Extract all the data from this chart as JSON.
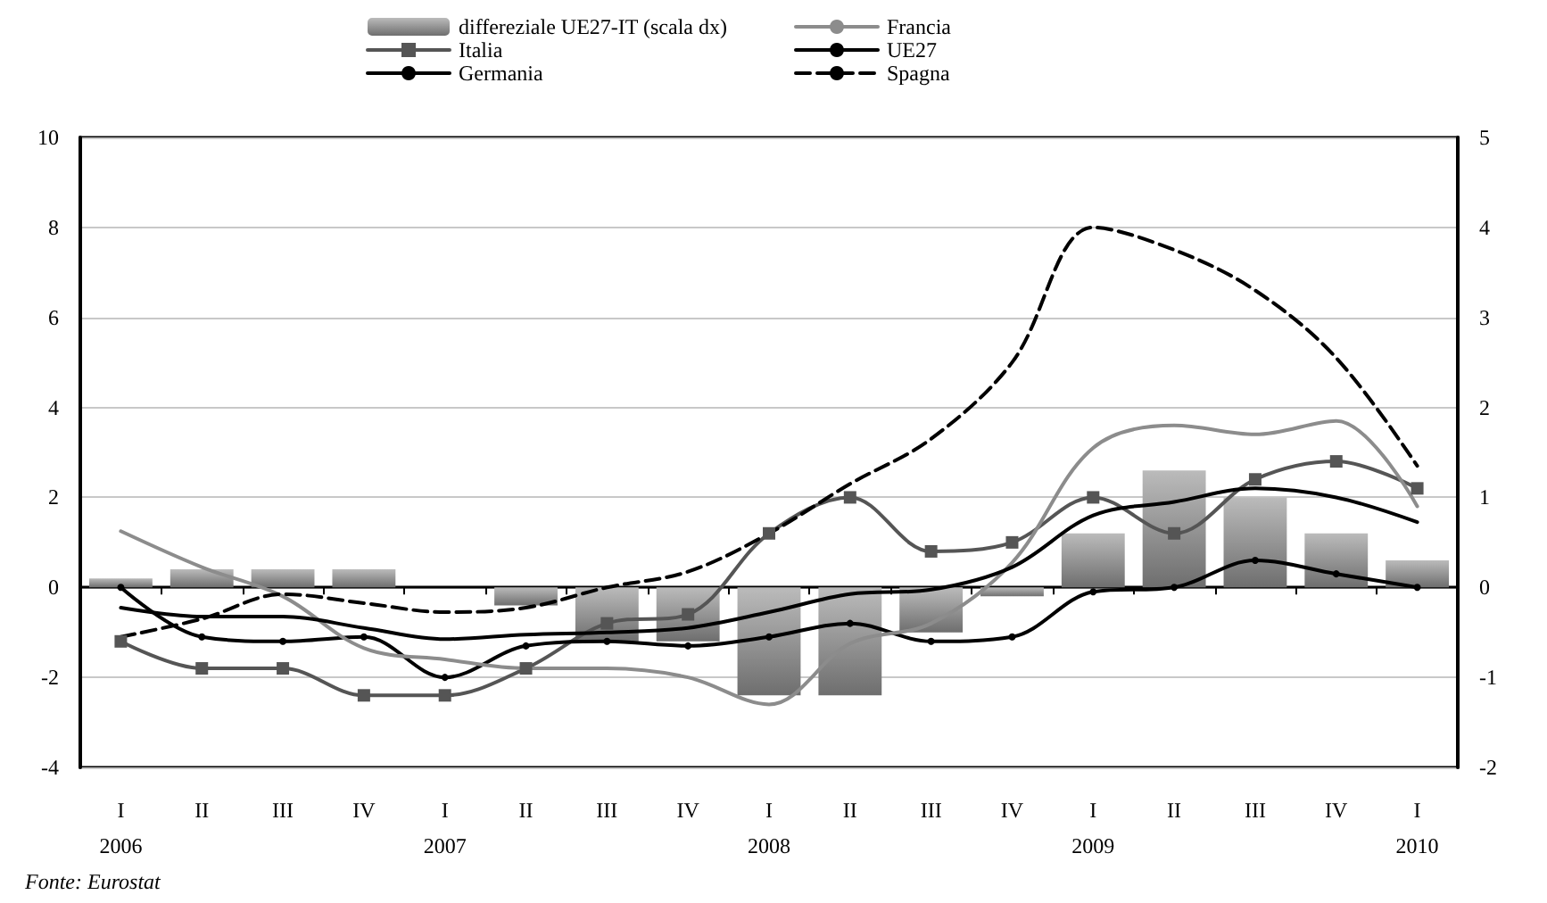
{
  "chart_data": {
    "type": "line",
    "categories": [
      "I\n2006",
      "II",
      "III",
      "IV",
      "I\n2007",
      "II",
      "III",
      "IV",
      "I\n2008",
      "II",
      "III",
      "IV",
      "I\n2009",
      "II",
      "III",
      "IV",
      "I\n2010"
    ],
    "series": [
      {
        "name": "differeziale UE27-IT (scala dx)",
        "type": "bar",
        "axis": "y2",
        "color": "#6e6e6e",
        "values": [
          0.1,
          0.2,
          0.2,
          0.2,
          0,
          -0.2,
          -0.6,
          -0.6,
          -1.2,
          -1.2,
          -0.5,
          -0.1,
          0.6,
          1.3,
          1.0,
          0.6,
          0.3
        ]
      },
      {
        "name": "Italia",
        "color": "#555555",
        "marker": "square",
        "line_style": "solid",
        "values": [
          -1.2,
          -1.8,
          -1.8,
          -2.4,
          -2.4,
          -1.8,
          -0.8,
          -0.6,
          1.2,
          2.0,
          0.8,
          1.0,
          2.0,
          1.2,
          2.4,
          2.8,
          2.2
        ]
      },
      {
        "name": "Germania",
        "color": "#000000",
        "marker": "circle",
        "line_style": "solid",
        "values": [
          0.0,
          -1.1,
          -1.2,
          -1.1,
          -2.0,
          -1.3,
          -1.2,
          -1.3,
          -1.1,
          -0.8,
          -1.2,
          -1.1,
          -0.1,
          0.0,
          0.6,
          0.3,
          0.0
        ]
      },
      {
        "name": "Francia",
        "color": "#8c8c8c",
        "marker": "none",
        "line_style": "solid",
        "values": [
          1.25,
          0.45,
          -0.2,
          -1.35,
          -1.6,
          -1.8,
          -1.8,
          -2.0,
          -2.6,
          -1.25,
          -0.8,
          0.55,
          3.1,
          3.6,
          3.4,
          3.7,
          1.8
        ]
      },
      {
        "name": "UE27",
        "color": "#000000",
        "marker": "none",
        "line_style": "solid",
        "values": [
          -0.45,
          -0.65,
          -0.65,
          -0.9,
          -1.15,
          -1.05,
          -1.0,
          -0.9,
          -0.55,
          -0.15,
          -0.05,
          0.45,
          1.6,
          1.9,
          2.2,
          2.0,
          1.45
        ]
      },
      {
        "name": "Spagna",
        "color": "#000000",
        "marker": "none",
        "line_style": "dashed",
        "values": [
          -1.1,
          -0.7,
          -0.15,
          -0.35,
          -0.55,
          -0.45,
          0.0,
          0.35,
          1.2,
          2.3,
          3.3,
          5.0,
          8.0,
          7.5,
          6.6,
          5.1,
          2.7
        ]
      }
    ],
    "ylim": [
      -4,
      10
    ],
    "yticks": [
      -4,
      -2,
      0,
      2,
      4,
      6,
      8,
      10
    ],
    "y2lim": [
      -2,
      5
    ],
    "y2ticks": [
      -2,
      -1,
      0,
      1,
      2,
      3,
      4,
      5
    ],
    "grid": "y",
    "legend": "top",
    "annotations": [
      "Fonte: Eurostat"
    ]
  }
}
